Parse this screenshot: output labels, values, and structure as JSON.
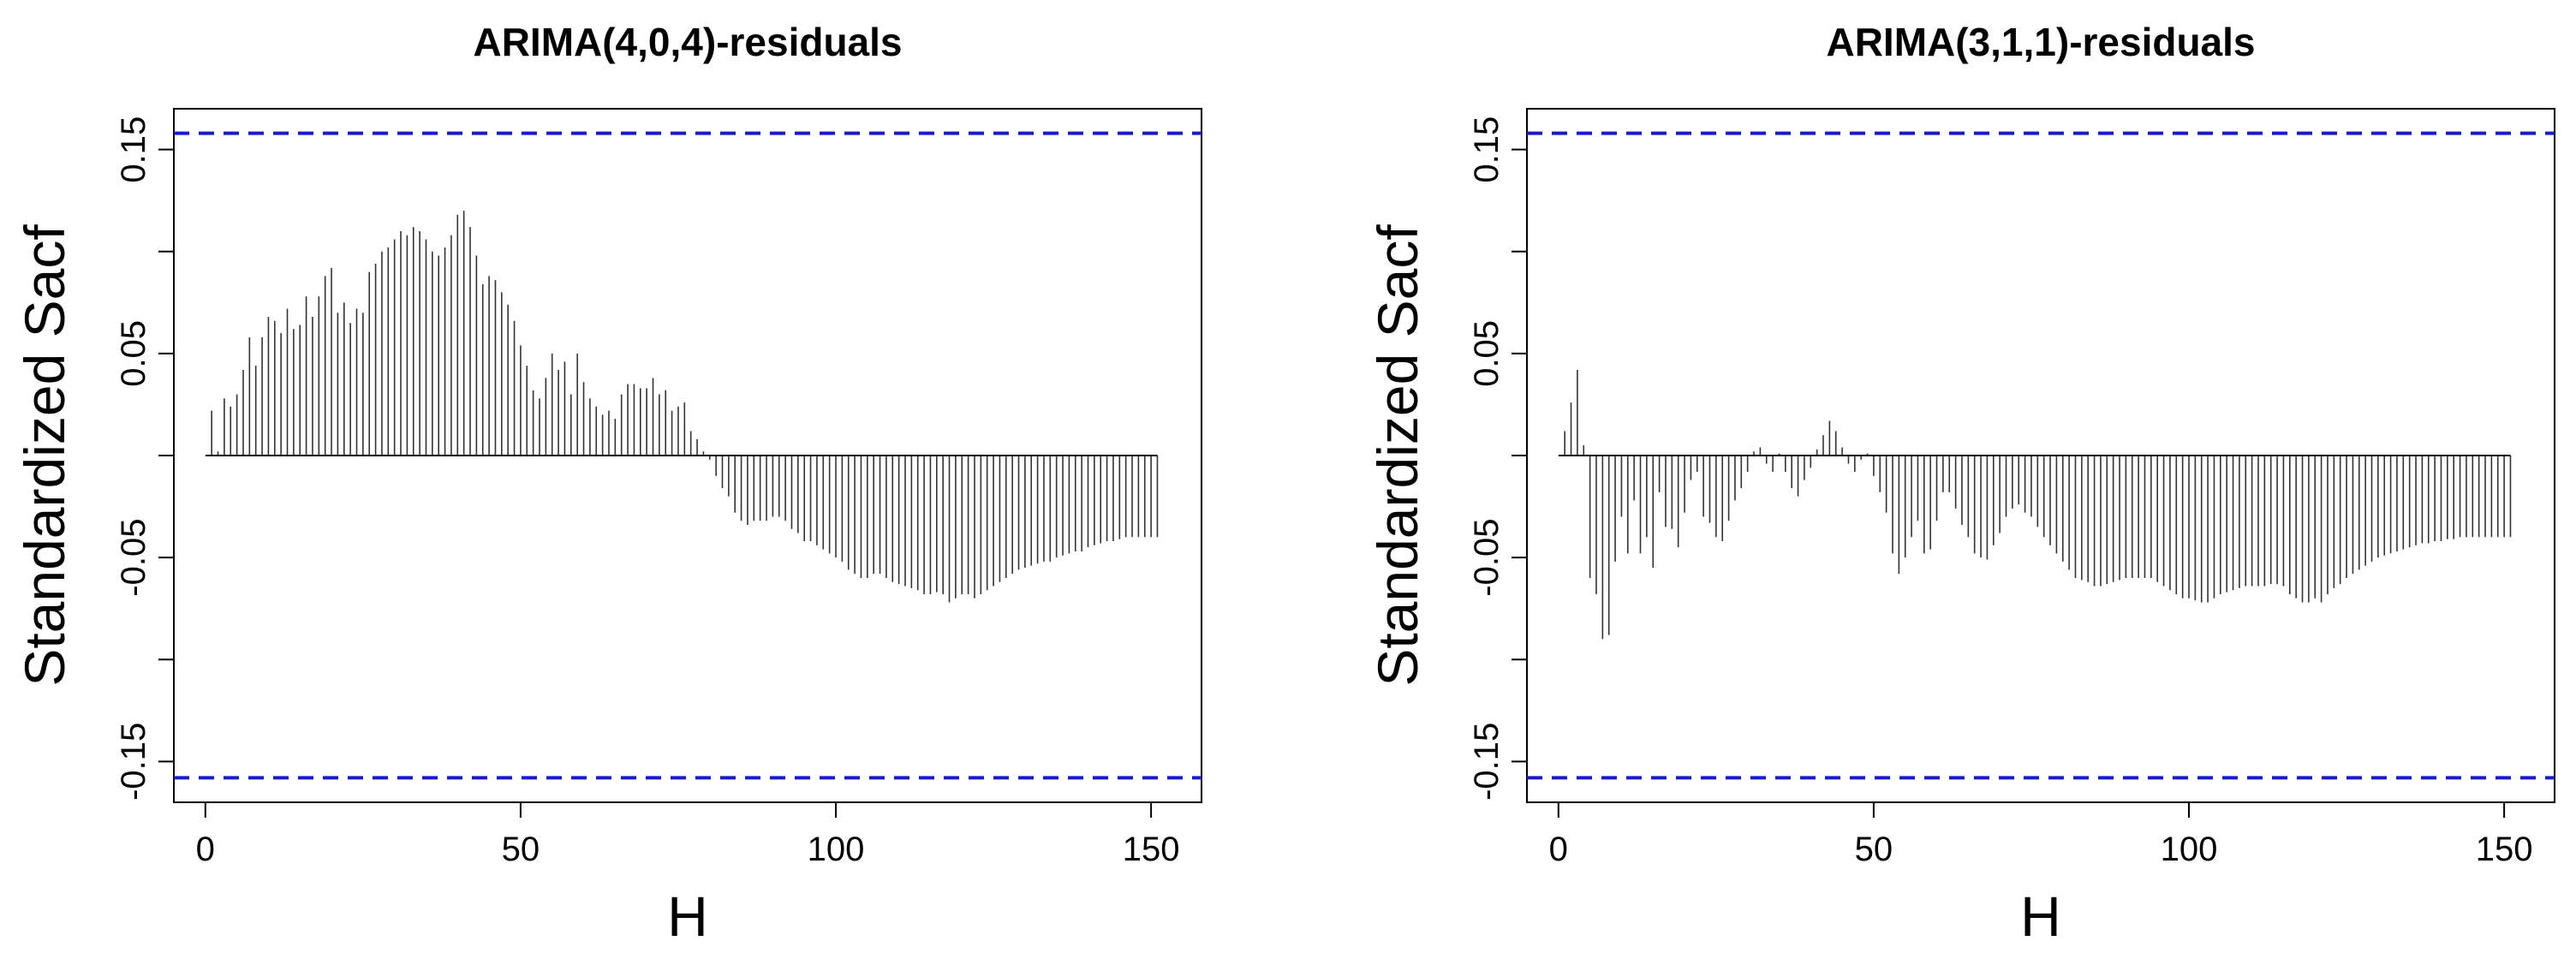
{
  "chart_data": [
    {
      "type": "bar",
      "title": "ARIMA(4,0,4)-residuals",
      "xlabel": "H",
      "ylabel": "Standardized Sacf",
      "xlim": [
        -5,
        158
      ],
      "ylim": [
        -0.17,
        0.17
      ],
      "xticks": [
        "0",
        "50",
        "100",
        "150"
      ],
      "xtick_values": [
        0,
        50,
        100,
        150
      ],
      "yticks": [
        "-0.15",
        "-0.05",
        "0.05",
        "0.15"
      ],
      "ytick_values": [
        -0.15,
        -0.05,
        0.05,
        0.15
      ],
      "yticks_minor": [
        -0.1,
        0,
        0.1
      ],
      "bounds": [
        -0.158,
        0.158
      ],
      "bound_color": "#1a1acc",
      "bar_color": "#333333",
      "x_start": 1,
      "values": [
        0.022,
        0.002,
        0.028,
        0.024,
        0.03,
        0.042,
        0.058,
        0.044,
        0.058,
        0.068,
        0.066,
        0.06,
        0.072,
        0.062,
        0.064,
        0.078,
        0.068,
        0.078,
        0.088,
        0.092,
        0.07,
        0.075,
        0.065,
        0.072,
        0.07,
        0.09,
        0.094,
        0.1,
        0.102,
        0.106,
        0.11,
        0.108,
        0.112,
        0.11,
        0.106,
        0.1,
        0.098,
        0.102,
        0.108,
        0.118,
        0.12,
        0.112,
        0.098,
        0.084,
        0.088,
        0.086,
        0.08,
        0.074,
        0.066,
        0.054,
        0.044,
        0.032,
        0.028,
        0.038,
        0.05,
        0.042,
        0.046,
        0.03,
        0.05,
        0.036,
        0.028,
        0.024,
        0.02,
        0.022,
        0.018,
        0.03,
        0.035,
        0.035,
        0.033,
        0.033,
        0.038,
        0.03,
        0.032,
        0.022,
        0.024,
        0.026,
        0.012,
        0.008,
        0.002,
        -0.002,
        -0.01,
        -0.016,
        -0.02,
        -0.028,
        -0.032,
        -0.034,
        -0.032,
        -0.032,
        -0.032,
        -0.03,
        -0.03,
        -0.032,
        -0.036,
        -0.038,
        -0.042,
        -0.042,
        -0.044,
        -0.046,
        -0.048,
        -0.05,
        -0.052,
        -0.056,
        -0.058,
        -0.06,
        -0.06,
        -0.058,
        -0.058,
        -0.06,
        -0.062,
        -0.063,
        -0.064,
        -0.065,
        -0.066,
        -0.068,
        -0.068,
        -0.067,
        -0.068,
        -0.072,
        -0.07,
        -0.068,
        -0.068,
        -0.07,
        -0.068,
        -0.066,
        -0.064,
        -0.062,
        -0.06,
        -0.058,
        -0.056,
        -0.055,
        -0.054,
        -0.053,
        -0.052,
        -0.052,
        -0.05,
        -0.049,
        -0.048,
        -0.047,
        -0.047,
        -0.045,
        -0.044,
        -0.043,
        -0.042,
        -0.042,
        -0.041,
        -0.04,
        -0.04,
        -0.04,
        -0.04,
        -0.04,
        -0.04
      ]
    },
    {
      "type": "bar",
      "title": "ARIMA(3,1,1)-residuals",
      "xlabel": "H",
      "ylabel": "Standardized Sacf",
      "xlim": [
        -5,
        158
      ],
      "ylim": [
        -0.17,
        0.17
      ],
      "xticks": [
        "0",
        "50",
        "100",
        "150"
      ],
      "xtick_values": [
        0,
        50,
        100,
        150
      ],
      "yticks": [
        "-0.15",
        "-0.05",
        "0.05",
        "0.15"
      ],
      "ytick_values": [
        -0.15,
        -0.05,
        0.05,
        0.15
      ],
      "yticks_minor": [
        -0.1,
        0,
        0.1
      ],
      "bounds": [
        -0.158,
        0.158
      ],
      "bound_color": "#1a1acc",
      "bar_color": "#333333",
      "x_start": 1,
      "values": [
        0.012,
        0.026,
        0.042,
        0.005,
        -0.06,
        -0.068,
        -0.09,
        -0.088,
        -0.052,
        -0.03,
        -0.048,
        -0.022,
        -0.048,
        -0.04,
        -0.055,
        -0.018,
        -0.035,
        -0.036,
        -0.045,
        -0.028,
        -0.012,
        -0.008,
        -0.03,
        -0.033,
        -0.04,
        -0.042,
        -0.032,
        -0.022,
        -0.016,
        -0.008,
        0.002,
        0.004,
        -0.004,
        -0.008,
        0.001,
        -0.008,
        -0.016,
        -0.02,
        -0.012,
        -0.006,
        0.003,
        0.01,
        0.017,
        0.012,
        0.004,
        -0.004,
        -0.008,
        -0.002,
        0.001,
        -0.01,
        -0.018,
        -0.028,
        -0.048,
        -0.058,
        -0.05,
        -0.04,
        -0.032,
        -0.048,
        -0.046,
        -0.032,
        -0.018,
        -0.018,
        -0.026,
        -0.034,
        -0.04,
        -0.048,
        -0.05,
        -0.051,
        -0.044,
        -0.038,
        -0.03,
        -0.026,
        -0.024,
        -0.028,
        -0.03,
        -0.035,
        -0.04,
        -0.044,
        -0.048,
        -0.052,
        -0.056,
        -0.06,
        -0.061,
        -0.062,
        -0.064,
        -0.064,
        -0.063,
        -0.062,
        -0.061,
        -0.06,
        -0.06,
        -0.06,
        -0.06,
        -0.06,
        -0.062,
        -0.064,
        -0.066,
        -0.068,
        -0.07,
        -0.07,
        -0.071,
        -0.072,
        -0.072,
        -0.07,
        -0.068,
        -0.067,
        -0.066,
        -0.065,
        -0.064,
        -0.064,
        -0.064,
        -0.064,
        -0.063,
        -0.063,
        -0.064,
        -0.068,
        -0.07,
        -0.072,
        -0.072,
        -0.07,
        -0.072,
        -0.068,
        -0.065,
        -0.063,
        -0.06,
        -0.058,
        -0.056,
        -0.054,
        -0.052,
        -0.05,
        -0.049,
        -0.048,
        -0.047,
        -0.046,
        -0.045,
        -0.044,
        -0.043,
        -0.043,
        -0.042,
        -0.042,
        -0.041,
        -0.041,
        -0.04,
        -0.04,
        -0.04,
        -0.04,
        -0.04,
        -0.04,
        -0.04,
        -0.04,
        -0.04
      ]
    }
  ]
}
